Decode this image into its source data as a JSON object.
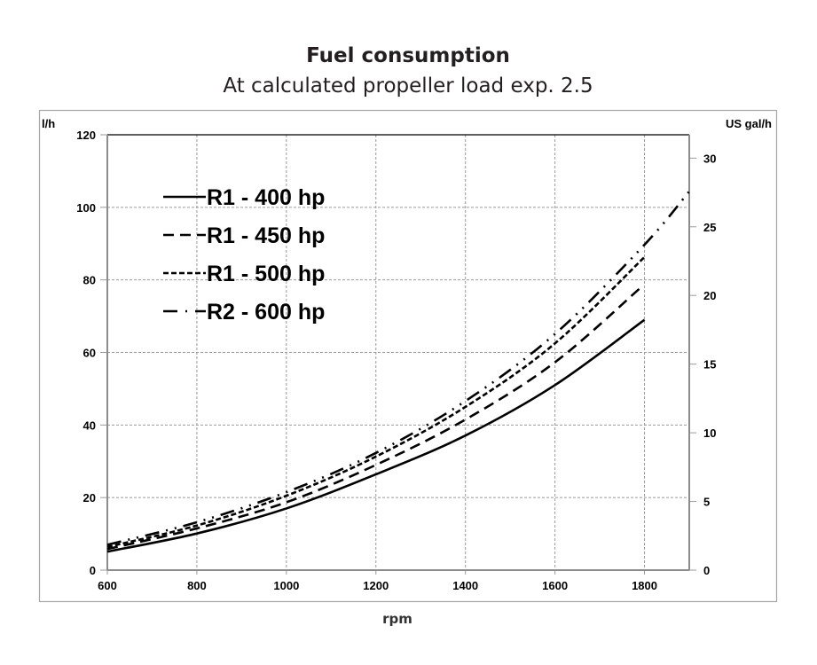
{
  "chart_data": {
    "type": "line",
    "title": "Fuel consumption",
    "subtitle": "At calculated propeller load exp. 2.5",
    "xlabel": "rpm",
    "ylabel_left": "l/h",
    "ylabel_right": "US gal/h",
    "xlim": [
      600,
      1900
    ],
    "ylim": [
      0,
      120
    ],
    "ylim_right": [
      0,
      31.7
    ],
    "x_ticks": [
      "600",
      "800",
      "1000",
      "1200",
      "1400",
      "1600",
      "1800"
    ],
    "y_ticks": [
      "0",
      "20",
      "40",
      "60",
      "80",
      "100",
      "120"
    ],
    "y_ticks_right": [
      "0",
      "5",
      "10",
      "15",
      "20",
      "25",
      "30"
    ],
    "grid": true,
    "legend_position": "top-left",
    "series": [
      {
        "name": "R1 - 400 hp",
        "style": "solid",
        "x": [
          600,
          800,
          1000,
          1200,
          1400,
          1600,
          1800
        ],
        "y": [
          5.1,
          10.1,
          17.0,
          26.4,
          37.1,
          51.0,
          69.0
        ]
      },
      {
        "name": "R1 - 450 hp",
        "style": "dashed",
        "x": [
          600,
          800,
          1000,
          1200,
          1400,
          1600,
          1790
        ],
        "y": [
          5.8,
          11.5,
          18.7,
          29.0,
          41.5,
          57.3,
          77.7
        ]
      },
      {
        "name": "R1 - 500 hp",
        "style": "short-dashed",
        "x": [
          600,
          800,
          1000,
          1200,
          1400,
          1600,
          1800
        ],
        "y": [
          6.4,
          12.3,
          20.5,
          31.3,
          45.0,
          62.5,
          86.3
        ]
      },
      {
        "name": "R2 - 600 hp",
        "style": "dash-dot",
        "x": [
          600,
          800,
          1000,
          1200,
          1400,
          1600,
          1800,
          1900
        ],
        "y": [
          7.0,
          13.2,
          21.5,
          32.3,
          46.6,
          65.1,
          89.7,
          104.4
        ]
      }
    ]
  }
}
